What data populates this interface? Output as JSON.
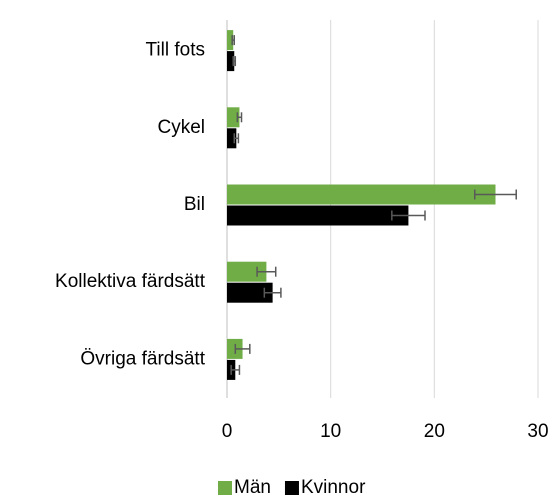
{
  "chart_data": {
    "type": "bar",
    "orientation": "horizontal",
    "categories": [
      "Till fots",
      "Cykel",
      "Bil",
      "Kollektiva färdsätt",
      "Övriga färdsätt"
    ],
    "series": [
      {
        "name": "Män",
        "color": "#70ad47",
        "values": [
          0.6,
          1.2,
          25.9,
          3.8,
          1.5
        ],
        "errors": [
          0.1,
          0.2,
          2.0,
          0.9,
          0.7
        ]
      },
      {
        "name": "Kvinnor",
        "color": "#000000",
        "values": [
          0.7,
          0.9,
          17.5,
          4.4,
          0.8
        ],
        "errors": [
          0.1,
          0.2,
          1.6,
          0.8,
          0.4
        ]
      }
    ],
    "xlim": [
      0,
      30
    ],
    "xticks": [
      0,
      10,
      20,
      30
    ],
    "grid": true,
    "legend": "bottom"
  }
}
